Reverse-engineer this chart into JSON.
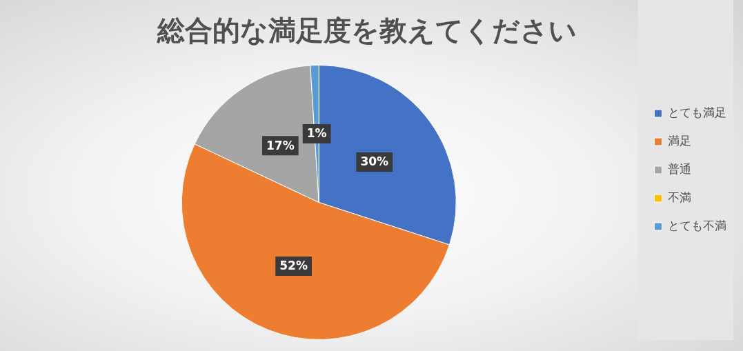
{
  "chart_data": {
    "type": "pie",
    "title": "総合的な満足度を教えてください",
    "categories": [
      "とても満足",
      "満足",
      "普通",
      "不満",
      "とても不満"
    ],
    "values": [
      30,
      52,
      17,
      0,
      1
    ],
    "value_labels": [
      "30%",
      "52%",
      "17%",
      null,
      "1%"
    ],
    "colors": [
      "#4472c4",
      "#ed7d31",
      "#a5a5a5",
      "#ffc000",
      "#5b9bd5"
    ],
    "legend": "right"
  }
}
